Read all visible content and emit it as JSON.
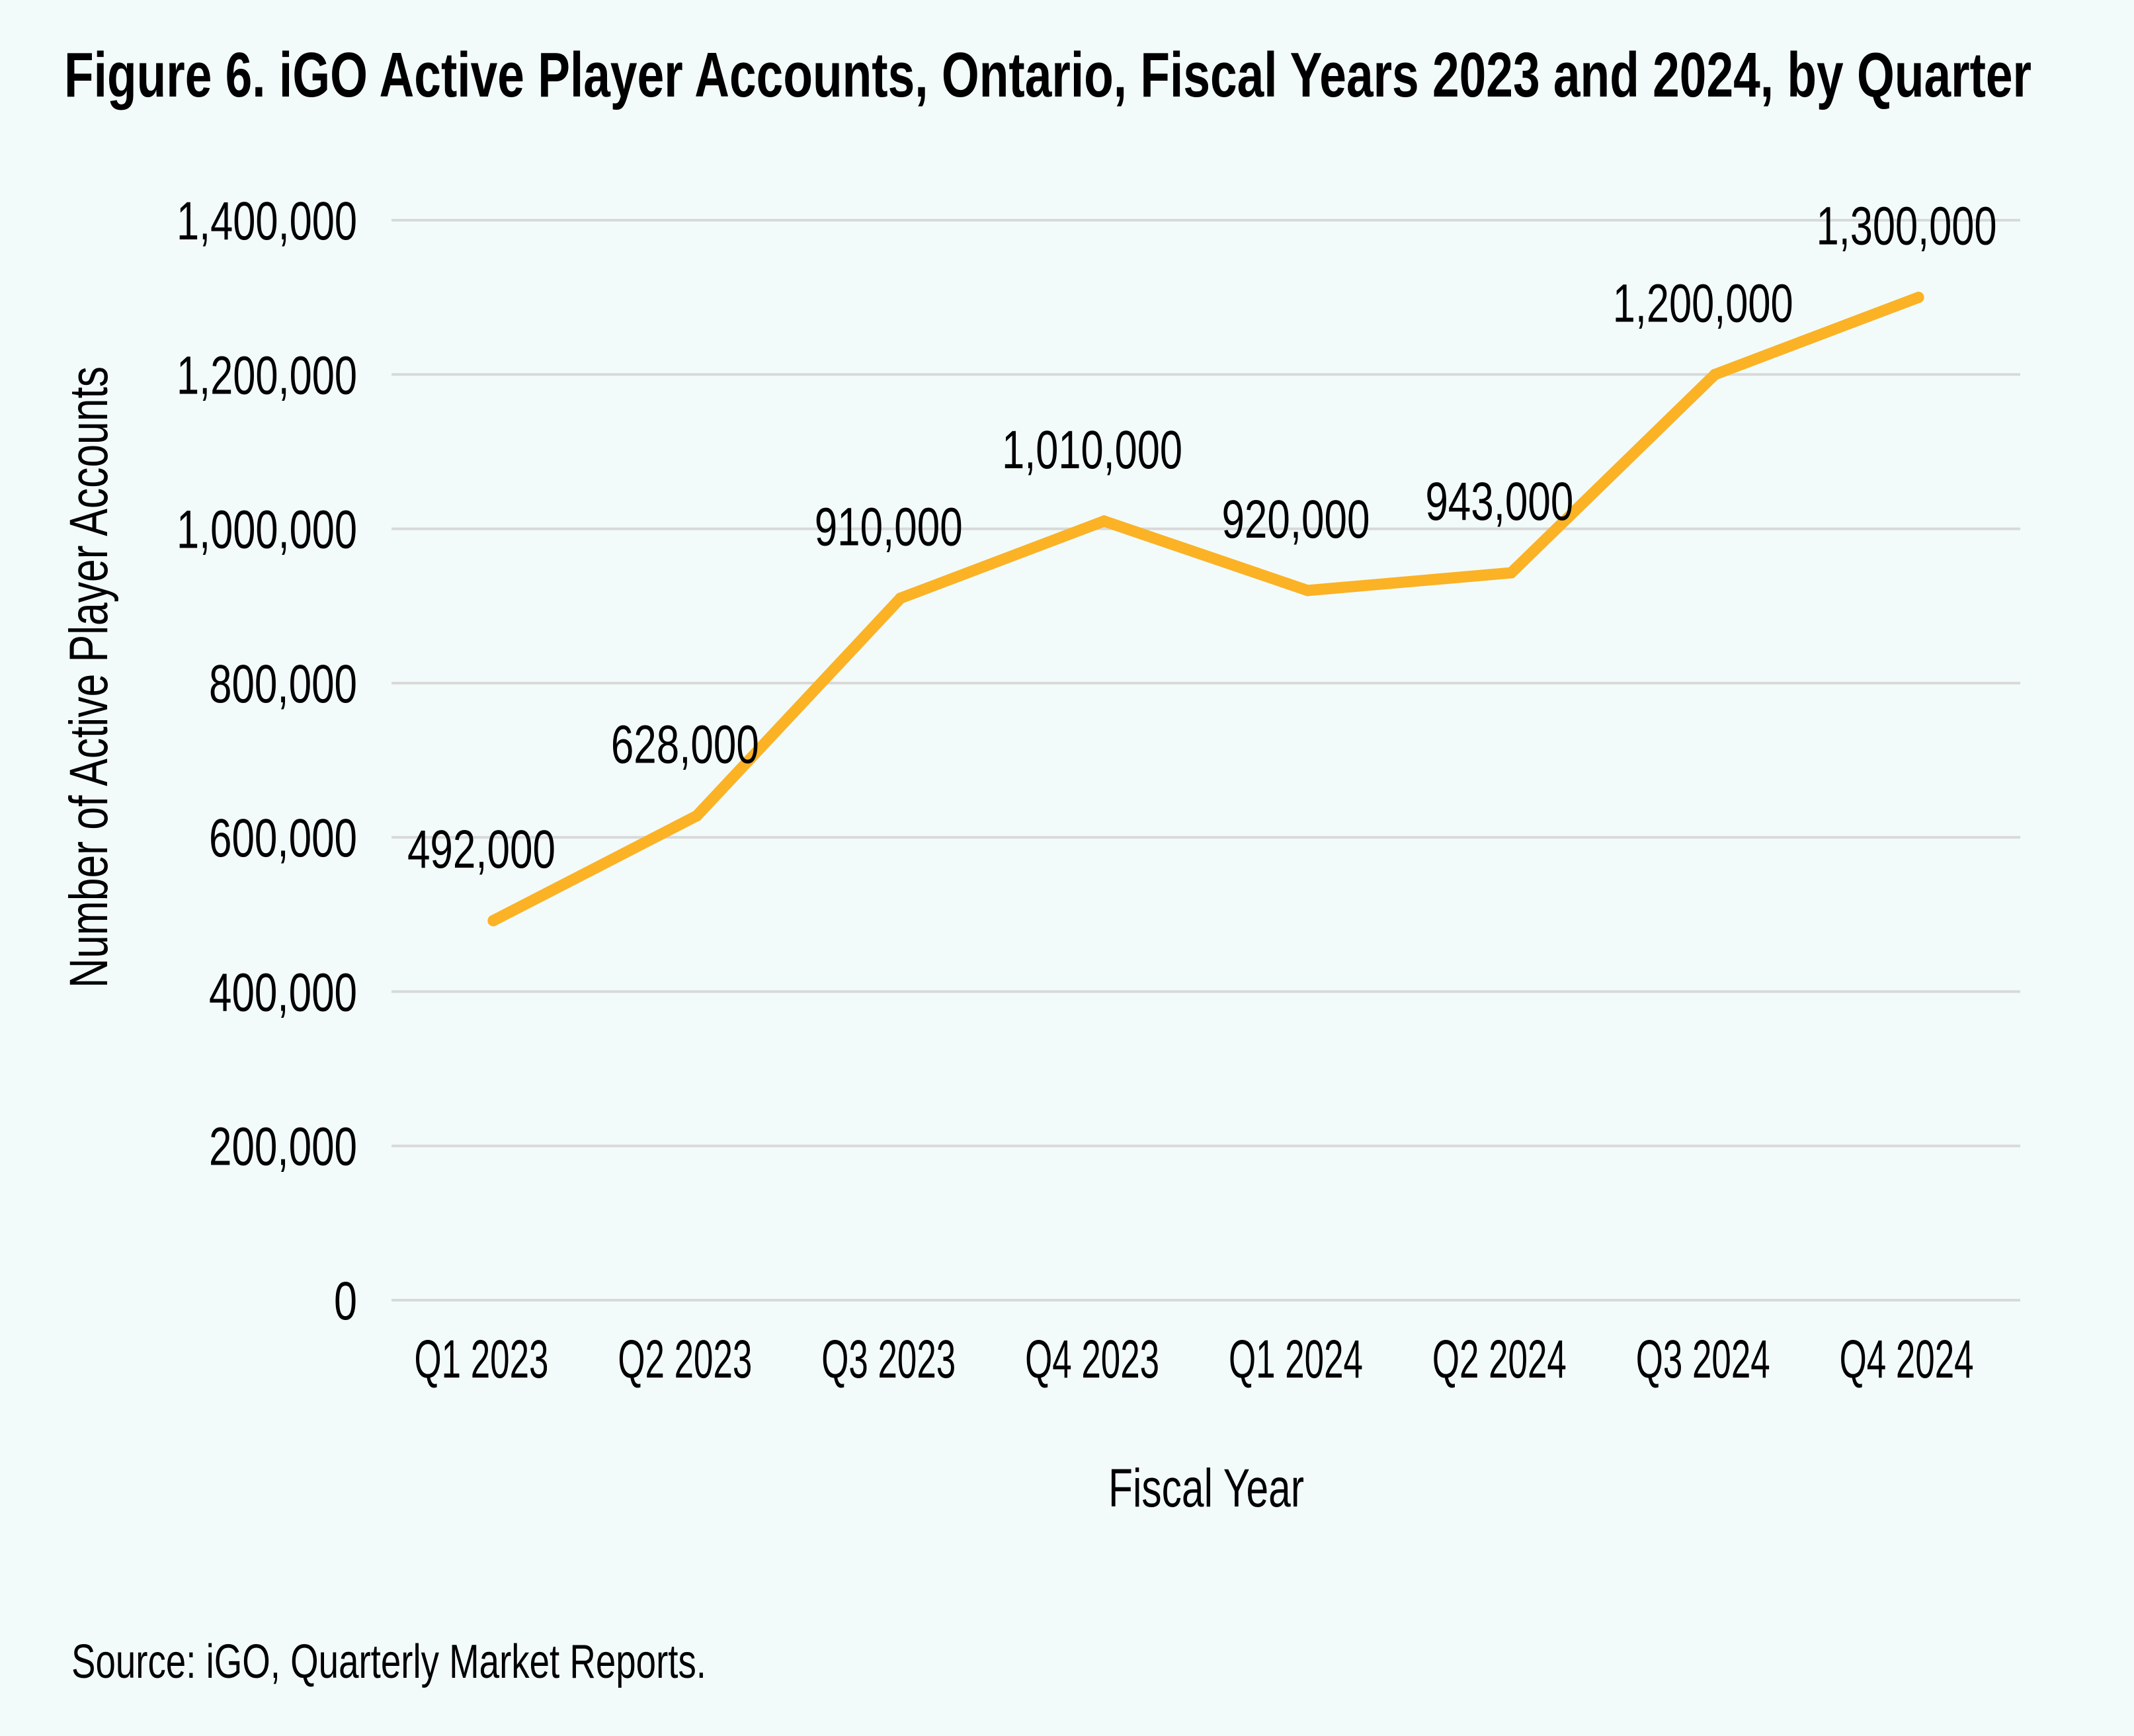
{
  "chart_data": {
    "type": "line",
    "title": "Figure 6. iGO Active Player Accounts, Ontario, Fiscal Years 2023 and 2024, by Quarter",
    "xlabel": "Fiscal Year",
    "ylabel": "Number of Active Player Accounts",
    "categories": [
      "Q1 2023",
      "Q2 2023",
      "Q3 2023",
      "Q4 2023",
      "Q1 2024",
      "Q2 2024",
      "Q3 2024",
      "Q4 2024"
    ],
    "series": [
      {
        "name": "Active Player Accounts",
        "color": "#FBB225",
        "values": [
          492000,
          628000,
          910000,
          1010000,
          920000,
          943000,
          1200000,
          1300000
        ],
        "data_labels": [
          "492,000",
          "628,000",
          "910,000",
          "1,010,000",
          "920,000",
          "943,000",
          "1,200,000",
          "1,300,000"
        ]
      }
    ],
    "ylim": [
      0,
      1400000
    ],
    "yticks": [
      0,
      200000,
      400000,
      600000,
      800000,
      1000000,
      1200000,
      1400000
    ],
    "ytick_labels": [
      "0",
      "200,000",
      "400,000",
      "600,000",
      "800,000",
      "1,000,000",
      "1,200,000",
      "1,400,000"
    ],
    "grid": true,
    "gridline_color": "#D9D9D9",
    "legend": "none",
    "source": "Source: iGO, Quarterly Market Reports."
  },
  "background_color": "#F2FBFA"
}
